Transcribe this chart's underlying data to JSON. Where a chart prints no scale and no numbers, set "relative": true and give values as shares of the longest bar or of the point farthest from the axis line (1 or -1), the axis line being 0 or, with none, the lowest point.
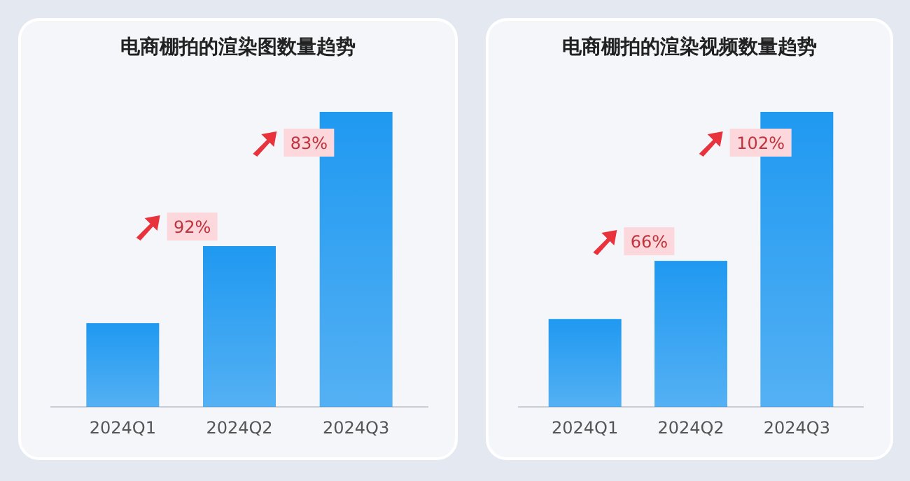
{
  "chart_data": [
    {
      "type": "bar",
      "title": "电商棚拍的渲染图数量趋势",
      "categories": [
        "2024Q1",
        "2024Q2",
        "2024Q3"
      ],
      "values": [
        0.284,
        0.545,
        1
      ],
      "relative": true,
      "color": "#1f99f1",
      "annotations": [
        "92%",
        "83%"
      ]
    },
    {
      "type": "bar",
      "title": "电商棚拍的渲染视频数量趋势",
      "categories": [
        "2024Q1",
        "2024Q2",
        "2024Q3"
      ],
      "values": [
        0.298,
        0.495,
        1
      ],
      "relative": true,
      "color": "#1f99f1",
      "annotations": [
        "66%",
        "102%"
      ]
    }
  ]
}
